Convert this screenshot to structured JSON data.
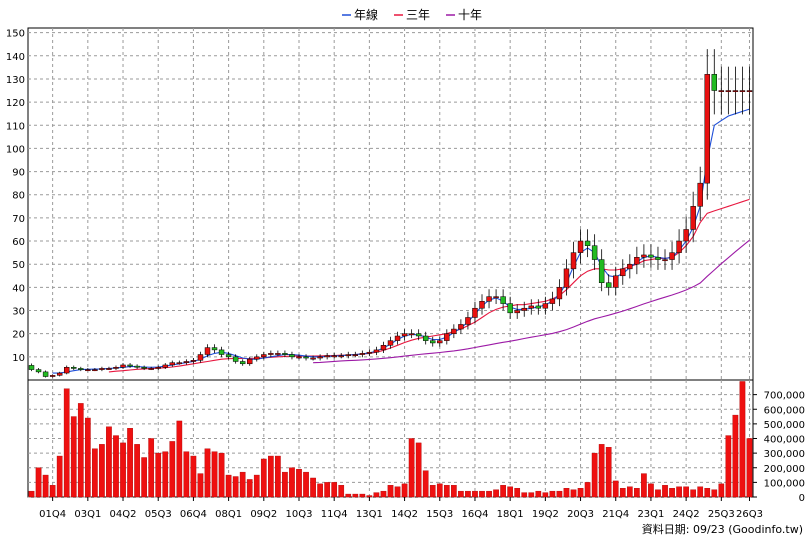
{
  "legend": [
    {
      "label": "年線",
      "color": "#1f4fd8"
    },
    {
      "label": "三年",
      "color": "#e8173f"
    },
    {
      "label": "十年",
      "color": "#9c1aa6"
    }
  ],
  "footer": "資料日期: 09/23 (Goodinfo.tw)",
  "colors": {
    "up": "#e81010",
    "down": "#22bb22",
    "volume": "#ee1010",
    "grid": "#9a9a9a"
  },
  "chart_data": [
    {
      "type": "candlestick",
      "title": "",
      "ylim": [
        0,
        152
      ],
      "yticks": [
        10,
        20,
        30,
        40,
        50,
        60,
        70,
        80,
        90,
        100,
        110,
        120,
        130,
        140,
        150
      ],
      "xtick_labels": [
        "01Q4",
        "03Q1",
        "04Q2",
        "05Q3",
        "06Q4",
        "08Q1",
        "09Q2",
        "10Q3",
        "11Q4",
        "13Q1",
        "14Q2",
        "15Q3",
        "16Q4",
        "18Q1",
        "19Q2",
        "20Q3",
        "21Q4",
        "23Q1",
        "24Q2",
        "25Q3",
        "26Q3"
      ],
      "xtick_quarter_index": [
        3,
        8,
        13,
        18,
        23,
        28,
        33,
        38,
        43,
        48,
        53,
        58,
        63,
        68,
        73,
        78,
        83,
        88,
        93,
        98,
        102
      ],
      "quarters": 103,
      "close": [
        4.5,
        3.5,
        1.5,
        2,
        3,
        5.5,
        5,
        4.5,
        4.5,
        4.5,
        5,
        5,
        5.5,
        6.5,
        6,
        5.5,
        5,
        5,
        5.5,
        6.5,
        7.5,
        7.5,
        8,
        8.5,
        11,
        14,
        13,
        11,
        10,
        8,
        7,
        9,
        10,
        11,
        11.5,
        11.5,
        11,
        10,
        10,
        9.5,
        9.5,
        10,
        10.5,
        10.5,
        10.5,
        11,
        11,
        11.5,
        12,
        13,
        15,
        17,
        19,
        20,
        20,
        19,
        17,
        16,
        17,
        20,
        22,
        24,
        27,
        31,
        34,
        36,
        36,
        33,
        29,
        30,
        31,
        32,
        31,
        33,
        35,
        40,
        48,
        55,
        60,
        58,
        52,
        42,
        40,
        45,
        48,
        50,
        53,
        54,
        53,
        52,
        52,
        55,
        60,
        65,
        75,
        85,
        132,
        125,
        125,
        125,
        125,
        125,
        125
      ],
      "ma_1y": [
        null,
        null,
        null,
        3,
        3,
        3.5,
        4,
        4.5,
        4.6,
        4.7,
        4.8,
        5,
        5.2,
        5.5,
        5.8,
        5.8,
        5.6,
        5.5,
        5.6,
        6,
        6.5,
        7,
        7.5,
        8,
        9,
        10.5,
        11.5,
        12,
        11.5,
        10.5,
        9.5,
        9,
        9,
        9.5,
        10,
        10.5,
        11,
        11,
        10.7,
        10.3,
        10,
        10,
        10.2,
        10.4,
        10.5,
        10.8,
        11,
        11.3,
        11.7,
        12.5,
        13.8,
        15.5,
        17.5,
        19,
        19.7,
        19.5,
        18.5,
        17.5,
        17.5,
        18.5,
        20.5,
        22.5,
        25,
        28.5,
        32,
        34.5,
        35.5,
        34,
        31.5,
        30.5,
        30.5,
        31,
        31.5,
        32.5,
        34,
        37,
        42,
        49,
        55,
        57,
        55,
        49,
        45,
        44.5,
        46,
        48.5,
        51,
        53,
        53.5,
        53,
        52.5,
        53,
        56,
        60,
        66,
        75,
        95,
        110,
        112,
        114,
        115,
        116,
        117
      ],
      "ma_3y": [
        null,
        null,
        null,
        null,
        null,
        null,
        null,
        null,
        null,
        null,
        null,
        3.5,
        3.8,
        4,
        4.3,
        4.6,
        4.8,
        5,
        5.1,
        5.3,
        5.6,
        6,
        6.5,
        7,
        7.5,
        8,
        8.5,
        9,
        9.2,
        9.3,
        9.3,
        9.3,
        9.4,
        9.6,
        9.8,
        10,
        10.2,
        10.3,
        10.3,
        10.3,
        10.3,
        10.4,
        10.5,
        10.6,
        10.7,
        10.8,
        11,
        11.2,
        11.5,
        12,
        12.8,
        13.8,
        15,
        16.2,
        17.2,
        18,
        18.5,
        19,
        19.5,
        20,
        21,
        22,
        23.5,
        25,
        27,
        29,
        30.5,
        31.5,
        32,
        32.5,
        32.5,
        33,
        33.5,
        34,
        35,
        36.5,
        39,
        42,
        45,
        47,
        48,
        48,
        47.5,
        47.5,
        48,
        49,
        50,
        51.5,
        52,
        52.5,
        52.5,
        53,
        55,
        58,
        62,
        68,
        72,
        73,
        74,
        75,
        76,
        77,
        78
      ],
      "ma_10y": [
        null,
        null,
        null,
        null,
        null,
        null,
        null,
        null,
        null,
        null,
        null,
        null,
        null,
        null,
        null,
        null,
        null,
        null,
        null,
        null,
        null,
        null,
        null,
        null,
        null,
        null,
        null,
        null,
        null,
        null,
        null,
        null,
        null,
        null,
        null,
        null,
        null,
        null,
        null,
        null,
        null,
        null,
        null,
        null,
        null,
        null,
        null,
        null,
        null,
        null,
        null,
        null,
        null,
        null,
        null,
        null,
        null,
        null,
        null,
        null,
        null,
        null,
        null,
        null,
        null,
        null,
        null,
        null,
        null,
        null,
        null,
        null,
        null,
        null,
        null,
        null,
        null,
        null,
        null,
        null,
        null,
        null,
        null,
        null,
        null,
        null,
        null,
        null,
        null,
        null,
        null,
        null,
        null,
        null,
        null,
        null,
        null,
        null,
        null,
        null,
        null,
        null,
        null
      ]
    },
    {
      "type": "bar",
      "title": "",
      "ylim": [
        0,
        800000
      ],
      "yticks": [
        0,
        100000,
        200000,
        300000,
        400000,
        500000,
        600000,
        700000
      ],
      "ytick_labels": [
        "0",
        "100,000",
        "200,000",
        "300,000",
        "400,000",
        "500,000",
        "600,000",
        "700,000"
      ],
      "values": [
        40000,
        200000,
        150000,
        80000,
        280000,
        740000,
        550000,
        640000,
        540000,
        330000,
        360000,
        480000,
        420000,
        370000,
        470000,
        360000,
        270000,
        400000,
        300000,
        310000,
        380000,
        520000,
        310000,
        280000,
        160000,
        330000,
        310000,
        300000,
        150000,
        140000,
        170000,
        120000,
        150000,
        260000,
        280000,
        280000,
        170000,
        200000,
        190000,
        170000,
        130000,
        90000,
        100000,
        100000,
        80000,
        20000,
        20000,
        20000,
        10000,
        30000,
        40000,
        80000,
        70000,
        90000,
        400000,
        370000,
        180000,
        80000,
        90000,
        80000,
        80000,
        40000,
        40000,
        40000,
        40000,
        40000,
        50000,
        80000,
        70000,
        60000,
        30000,
        30000,
        40000,
        30000,
        40000,
        40000,
        60000,
        50000,
        60000,
        100000,
        300000,
        360000,
        340000,
        110000,
        60000,
        70000,
        60000,
        160000,
        90000,
        50000,
        80000,
        60000,
        70000,
        70000,
        50000,
        70000,
        60000,
        50000,
        90000,
        420000,
        560000,
        790000,
        400000
      ]
    }
  ]
}
